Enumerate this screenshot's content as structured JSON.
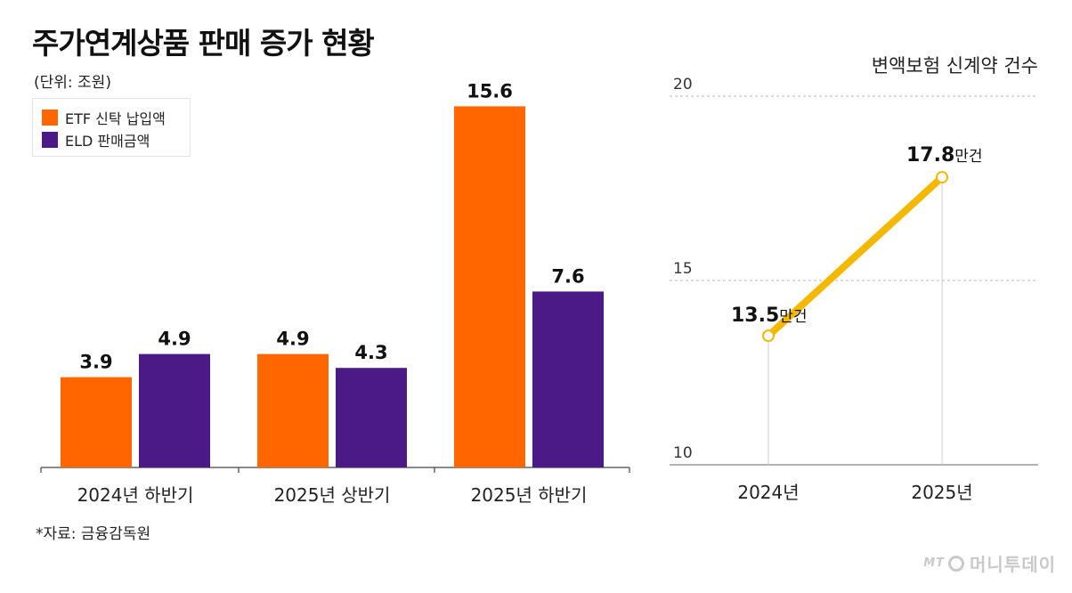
{
  "header": {
    "title": "주가연계상품 판매 증가 현황",
    "unit": "(단위: 조원)",
    "source": "*자료: 금융감독원",
    "logo_mt": "MT",
    "logo_text": "머니투데이"
  },
  "chart_data": [
    {
      "type": "bar",
      "title": "주가연계상품 판매 증가 현황",
      "unit": "조원",
      "categories": [
        "2024년 하반기",
        "2025년 상반기",
        "2025년 하반기"
      ],
      "series": [
        {
          "name": "ETF 신탁 납입액",
          "color": "#ff6600",
          "values": [
            3.9,
            4.9,
            15.6
          ],
          "labels": [
            "3.9",
            "4.9",
            "15.6"
          ]
        },
        {
          "name": "ELD 판매금액",
          "color": "#4b1a87",
          "values": [
            4.9,
            4.3,
            7.6
          ],
          "labels": [
            "4.9",
            "4.3",
            "7.6"
          ]
        }
      ],
      "ylim": [
        0,
        16.5
      ],
      "legend": "top-left"
    },
    {
      "type": "line",
      "title": "변액보험 신계약 건수",
      "x": [
        "2024년",
        "2025년"
      ],
      "series": [
        {
          "color": "#f5b800",
          "values": [
            13.5,
            17.8
          ],
          "labels": [
            "13.5",
            "17.8"
          ],
          "label_suffix": "만건"
        }
      ],
      "yticks": [
        "20",
        "15",
        "10"
      ],
      "ylim": [
        10,
        20
      ],
      "grid": true
    }
  ]
}
